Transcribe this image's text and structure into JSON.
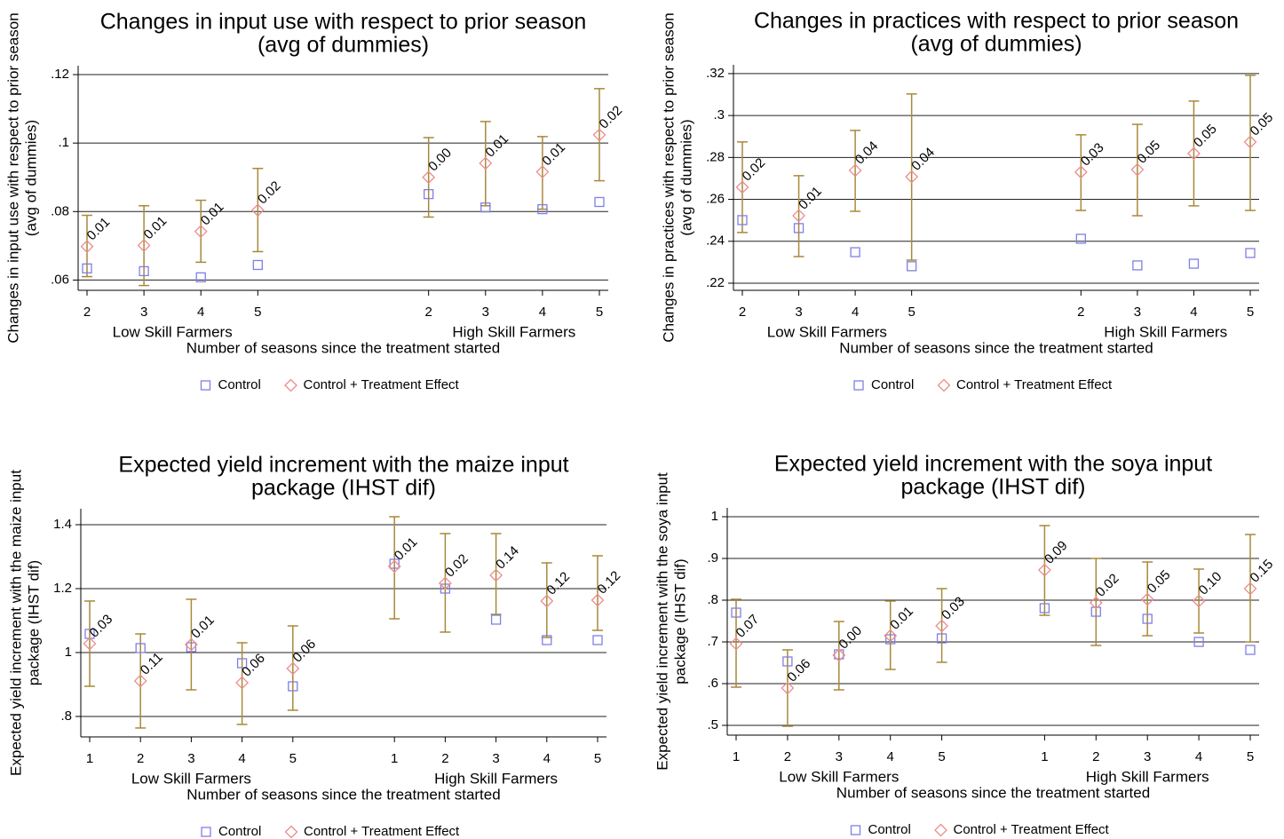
{
  "chart_data": [
    {
      "type": "errorbar",
      "title": [
        "Changes in input use with respect to prior season",
        "(avg of dummies)"
      ],
      "ylabel": [
        "Changes in input use with respect to prior season",
        "(avg of dummies)"
      ],
      "xlabel": "Number of seasons since the treatment started",
      "groups": [
        {
          "label": "Low Skill Farmers",
          "categories": [
            "2",
            "3",
            "4",
            "5"
          ]
        },
        {
          "label": "High Skill Farmers",
          "categories": [
            "2",
            "3",
            "4",
            "5"
          ]
        }
      ],
      "ylim": [
        0.057,
        0.1226
      ],
      "yticks": [
        {
          "value": 0.06,
          "label": ".06"
        },
        {
          "value": 0.08,
          "label": ".08"
        },
        {
          "value": 0.1,
          "label": ".1"
        },
        {
          "value": 0.12,
          "label": ".12"
        }
      ],
      "grid": true,
      "series": [
        {
          "name": "Control",
          "color": "#7f7fe6",
          "marker": "square",
          "values": [
            0.0634,
            0.0626,
            0.0608,
            0.0644,
            0.0851,
            0.0812,
            0.0807,
            0.0828
          ]
        },
        {
          "name": "Control + Treatment Effect",
          "color": "#ec8c8c",
          "marker": "diamond",
          "error_color": "#a8893a",
          "values": [
            0.0698,
            0.0701,
            0.0742,
            0.0804,
            0.09,
            0.0941,
            0.0916,
            0.1024
          ],
          "ci_low": [
            0.061,
            0.0584,
            0.0652,
            0.0683,
            0.0784,
            0.0817,
            0.0807,
            0.089
          ],
          "ci_high": [
            0.0789,
            0.0817,
            0.0833,
            0.0926,
            0.1016,
            0.1063,
            0.1019,
            0.1159
          ],
          "annotations": [
            "0.01",
            "0.01",
            "0.01",
            "0.02",
            "0.00",
            "0.01",
            "0.01",
            "0.02"
          ]
        }
      ]
    },
    {
      "type": "errorbar",
      "title": [
        "Changes in practices with respect to prior season",
        "(avg of dummies)"
      ],
      "ylabel": [
        "Changes in practices with respect to prior season",
        "(avg of dummies)"
      ],
      "xlabel": "Number of seasons since the treatment started",
      "groups": [
        {
          "label": "Low Skill Farmers",
          "categories": [
            "2",
            "3",
            "4",
            "5"
          ]
        },
        {
          "label": "High Skill Farmers",
          "categories": [
            "2",
            "3",
            "4",
            "5"
          ]
        }
      ],
      "ylim": [
        0.2166,
        0.3242
      ],
      "yticks": [
        {
          "value": 0.22,
          "label": ".22"
        },
        {
          "value": 0.24,
          "label": ".24"
        },
        {
          "value": 0.26,
          "label": ".26"
        },
        {
          "value": 0.28,
          "label": ".28"
        },
        {
          "value": 0.3,
          "label": ".3"
        },
        {
          "value": 0.32,
          "label": ".32"
        }
      ],
      "grid": true,
      "series": [
        {
          "name": "Control",
          "color": "#7f7fe6",
          "marker": "square",
          "values": [
            0.2501,
            0.2463,
            0.2348,
            0.2281,
            0.2412,
            0.2285,
            0.2293,
            0.2344
          ]
        },
        {
          "name": "Control + Treatment Effect",
          "color": "#ec8c8c",
          "marker": "diamond",
          "error_color": "#a8893a",
          "values": [
            0.2658,
            0.2522,
            0.2738,
            0.2708,
            0.273,
            0.2742,
            0.2819,
            0.2874
          ],
          "ci_low": [
            0.2442,
            0.2327,
            0.2543,
            0.231,
            0.2547,
            0.2522,
            0.2569,
            0.2547
          ],
          "ci_high": [
            0.2874,
            0.2713,
            0.2929,
            0.3103,
            0.2908,
            0.2958,
            0.3069,
            0.3192
          ],
          "annotations": [
            "0.02",
            "0.01",
            "0.04",
            "0.04",
            "0.03",
            "0.05",
            "0.05",
            "0.05"
          ]
        }
      ]
    },
    {
      "type": "errorbar",
      "title": [
        "Expected yield increment with the maize input",
        "package (IHST dif)"
      ],
      "ylabel": [
        "Expected yield increment with the maize input",
        "package (IHST dif)"
      ],
      "xlabel": "Number of seasons since the treatment started",
      "groups": [
        {
          "label": "Low Skill Farmers",
          "categories": [
            "1",
            "2",
            "3",
            "4",
            "5"
          ]
        },
        {
          "label": "High Skill Farmers",
          "categories": [
            "1",
            "2",
            "3",
            "4",
            "5"
          ]
        }
      ],
      "ylim": [
        0.736,
        1.45
      ],
      "yticks": [
        {
          "value": 0.8,
          "label": ".8"
        },
        1,
        {
          "value": 1.2,
          "label": "1.2"
        },
        {
          "value": 1.4,
          "label": "1.4"
        }
      ],
      "grid": true,
      "series": [
        {
          "name": "Control",
          "color": "#7f7fe6",
          "marker": "square",
          "values": [
            1.0583,
            1.0139,
            1.0167,
            0.9667,
            0.8944,
            1.2778,
            1.2,
            1.1028,
            1.0389,
            1.0389
          ]
        },
        {
          "name": "Control + Treatment Effect",
          "color": "#ec8c8c",
          "marker": "diamond",
          "error_color": "#a8893a",
          "values": [
            1.0278,
            0.9111,
            1.025,
            0.9056,
            0.95,
            1.2694,
            1.2167,
            1.2417,
            1.1611,
            1.1639
          ],
          "ci_low": [
            0.8944,
            0.7639,
            0.8833,
            0.775,
            0.8194,
            1.1056,
            1.0639,
            1.1194,
            1.0472,
            1.0694
          ],
          "ci_high": [
            1.1611,
            1.0583,
            1.1667,
            1.0306,
            1.0833,
            1.425,
            1.3722,
            1.3722,
            1.2806,
            1.3028
          ],
          "annotations": [
            "0.03",
            "0.11",
            "0.01",
            "0.06",
            "0.06",
            "0.01",
            "0.02",
            "0.14",
            "0.12",
            "0.12"
          ]
        }
      ]
    },
    {
      "type": "errorbar",
      "title": [
        "Expected yield increment with the soya input",
        "package (IHST dif)"
      ],
      "ylabel": [
        "Expected yield increment with the soya input",
        "package (IHST dif)"
      ],
      "xlabel": "Number of seasons since the treatment started",
      "groups": [
        {
          "label": "Low Skill Farmers",
          "categories": [
            "1",
            "2",
            "3",
            "4",
            "5"
          ]
        },
        {
          "label": "High Skill Farmers",
          "categories": [
            "1",
            "2",
            "3",
            "4",
            "5"
          ]
        }
      ],
      "ylim": [
        0.4766,
        1.0213
      ],
      "yticks": [
        {
          "value": 0.5,
          "label": ".5"
        },
        {
          "value": 0.6,
          "label": ".6"
        },
        {
          "value": 0.7,
          "label": ".7"
        },
        {
          "value": 0.8,
          "label": ".8"
        },
        {
          "value": 0.9,
          "label": ".9"
        },
        1
      ],
      "grid": true,
      "series": [
        {
          "name": "Control",
          "color": "#7f7fe6",
          "marker": "square",
          "values": [
            0.7702,
            0.6532,
            0.6702,
            0.7064,
            0.7085,
            0.7809,
            0.7723,
            0.7553,
            0.7,
            0.6809
          ]
        },
        {
          "name": "Control + Treatment Effect",
          "color": "#ec8c8c",
          "marker": "diamond",
          "error_color": "#a8893a",
          "values": [
            0.6957,
            0.5894,
            0.6681,
            0.7149,
            0.7383,
            0.8723,
            0.7936,
            0.8021,
            0.7979,
            0.8277
          ],
          "ci_low": [
            0.5915,
            0.4979,
            0.5851,
            0.634,
            0.6511,
            0.7638,
            0.6915,
            0.7149,
            0.7213,
            0.7
          ],
          "ci_high": [
            0.8021,
            0.6809,
            0.7489,
            0.7979,
            0.8277,
            0.9787,
            0.9,
            0.8915,
            0.8745,
            0.9574
          ],
          "annotations": [
            "0.07",
            "0.06",
            "0.00",
            "0.01",
            "0.03",
            "0.09",
            "0.02",
            "0.05",
            "0.10",
            "0.15"
          ]
        }
      ]
    }
  ]
}
